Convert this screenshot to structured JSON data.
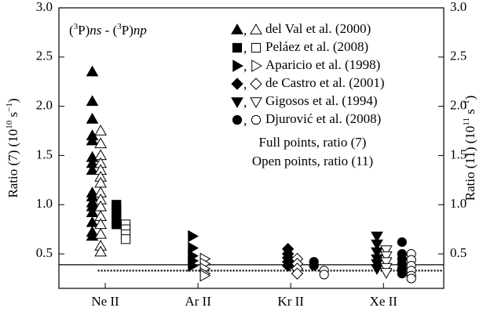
{
  "chart_data": {
    "type": "scatter",
    "annotation_parts": [
      "(",
      "3",
      "P)",
      "ns",
      " - (",
      "3",
      "P)",
      "np"
    ],
    "ylabel_parts": [
      "Ratio (7)  (10",
      "10",
      " s",
      "−1",
      ")"
    ],
    "y2label_parts": [
      "Ratio (11)  (10",
      "11",
      " s",
      "−1",
      ")"
    ],
    "notes": [
      "Full points, ratio (7)",
      "Open points, ratio (11)"
    ],
    "legend_separator": ", ",
    "categories": [
      "Ne II",
      "Ar II",
      "Kr II",
      "Xe II"
    ],
    "xticks": [
      0,
      1,
      2,
      3
    ],
    "xlim": [
      -0.5,
      3.65
    ],
    "ylim": [
      0.15,
      3.0
    ],
    "yticks": [
      {
        "value": 0.5,
        "label": "0.5"
      },
      {
        "value": 1.0,
        "label": "1.0"
      },
      {
        "value": 1.5,
        "label": "1.5"
      },
      {
        "value": 2.0,
        "label": "2.0"
      },
      {
        "value": 2.5,
        "label": "2.5"
      },
      {
        "value": 3.0,
        "label": "3.0"
      }
    ],
    "y2lim": [
      0.15,
      3.0
    ],
    "y2ticks": [
      {
        "value": 0.5,
        "label": "0.5"
      },
      {
        "value": 1.0,
        "label": "1.0"
      },
      {
        "value": 1.5,
        "label": "1.5"
      },
      {
        "value": 2.0,
        "label": "2.0"
      },
      {
        "value": 2.5,
        "label": "2.5"
      },
      {
        "value": 3.0,
        "label": "3.0"
      }
    ],
    "reference_lines": [
      {
        "value": 0.39,
        "style": "solid",
        "xstart": -0.5
      },
      {
        "value": 0.33,
        "style": "dotted",
        "xstart": -0.08
      }
    ],
    "series": [
      {
        "name": "del Val et al. (2000)",
        "marker": "triangle-up",
        "color": "#000",
        "full": {
          "x": [
            -0.14,
            -0.14,
            -0.14,
            -0.14,
            -0.14,
            -0.14,
            -0.14,
            -0.14,
            -0.14,
            -0.14,
            -0.14,
            -0.14,
            -0.14,
            -0.14,
            -0.14,
            -0.14
          ],
          "y": [
            2.35,
            2.05,
            1.87,
            1.7,
            1.65,
            1.48,
            1.42,
            1.35,
            1.12,
            1.08,
            1.02,
            0.98,
            0.92,
            0.82,
            0.72,
            0.68
          ]
        },
        "open": {
          "x": [
            -0.05,
            -0.05,
            -0.05,
            -0.05,
            -0.05,
            -0.05,
            -0.05,
            -0.05,
            -0.05,
            -0.05,
            -0.05,
            -0.05,
            -0.05,
            -0.05,
            -0.05
          ],
          "y": [
            1.75,
            1.62,
            1.5,
            1.42,
            1.35,
            1.28,
            1.22,
            1.12,
            1.05,
            0.98,
            0.88,
            0.8,
            0.7,
            0.58,
            0.52
          ]
        }
      },
      {
        "name": "Peláez et al. (2008)",
        "marker": "square",
        "color": "#000",
        "full": {
          "x": [
            0.12,
            0.12,
            0.12,
            0.12,
            0.12,
            0.12,
            0.12
          ],
          "y": [
            1.0,
            0.97,
            0.93,
            0.9,
            0.87,
            0.83,
            0.8
          ]
        },
        "open": {
          "x": [
            0.22,
            0.22,
            0.22,
            0.22
          ],
          "y": [
            0.8,
            0.75,
            0.7,
            0.65
          ]
        }
      },
      {
        "name": "Aparicio et al. (1998)",
        "marker": "triangle-right",
        "color": "#000",
        "full": {
          "x": [
            0.94,
            0.94,
            0.94,
            0.94,
            0.94
          ],
          "y": [
            0.68,
            0.56,
            0.48,
            0.43,
            0.38
          ]
        },
        "open": {
          "x": [
            1.07,
            1.07,
            1.07,
            1.07,
            1.07
          ],
          "y": [
            0.45,
            0.4,
            0.35,
            0.3,
            0.28
          ]
        }
      },
      {
        "name": "de Castro et al. (2001)",
        "marker": "diamond",
        "color": "#000",
        "full": {
          "x": [
            1.97,
            1.97,
            1.97,
            1.97,
            1.97
          ],
          "y": [
            0.55,
            0.5,
            0.46,
            0.42,
            0.38
          ]
        },
        "open": {
          "x": [
            2.07,
            2.07,
            2.07,
            2.07
          ],
          "y": [
            0.45,
            0.4,
            0.35,
            0.3
          ]
        }
      },
      {
        "name": "Gigosos et al. (1994)",
        "marker": "triangle-down",
        "color": "#000",
        "full": {
          "x": [
            2.93,
            2.93,
            2.93,
            2.93,
            2.93,
            2.93
          ],
          "y": [
            0.68,
            0.6,
            0.52,
            0.45,
            0.4,
            0.35
          ]
        },
        "open": {
          "x": [
            3.03,
            3.03,
            3.03,
            3.03,
            3.03
          ],
          "y": [
            0.54,
            0.48,
            0.42,
            0.36,
            0.31
          ]
        }
      },
      {
        "name": "Djurović et al. (2008)",
        "marker": "circle",
        "color": "#000",
        "full": {
          "x": [
            2.25,
            2.25,
            3.2,
            3.2,
            3.2,
            3.2,
            3.2,
            3.2
          ],
          "y": [
            0.42,
            0.38,
            0.62,
            0.5,
            0.45,
            0.4,
            0.35,
            0.3
          ]
        },
        "open": {
          "x": [
            2.36,
            2.36,
            3.3,
            3.3,
            3.3,
            3.3,
            3.3,
            3.3
          ],
          "y": [
            0.33,
            0.29,
            0.5,
            0.44,
            0.38,
            0.33,
            0.28,
            0.25
          ]
        }
      }
    ]
  }
}
